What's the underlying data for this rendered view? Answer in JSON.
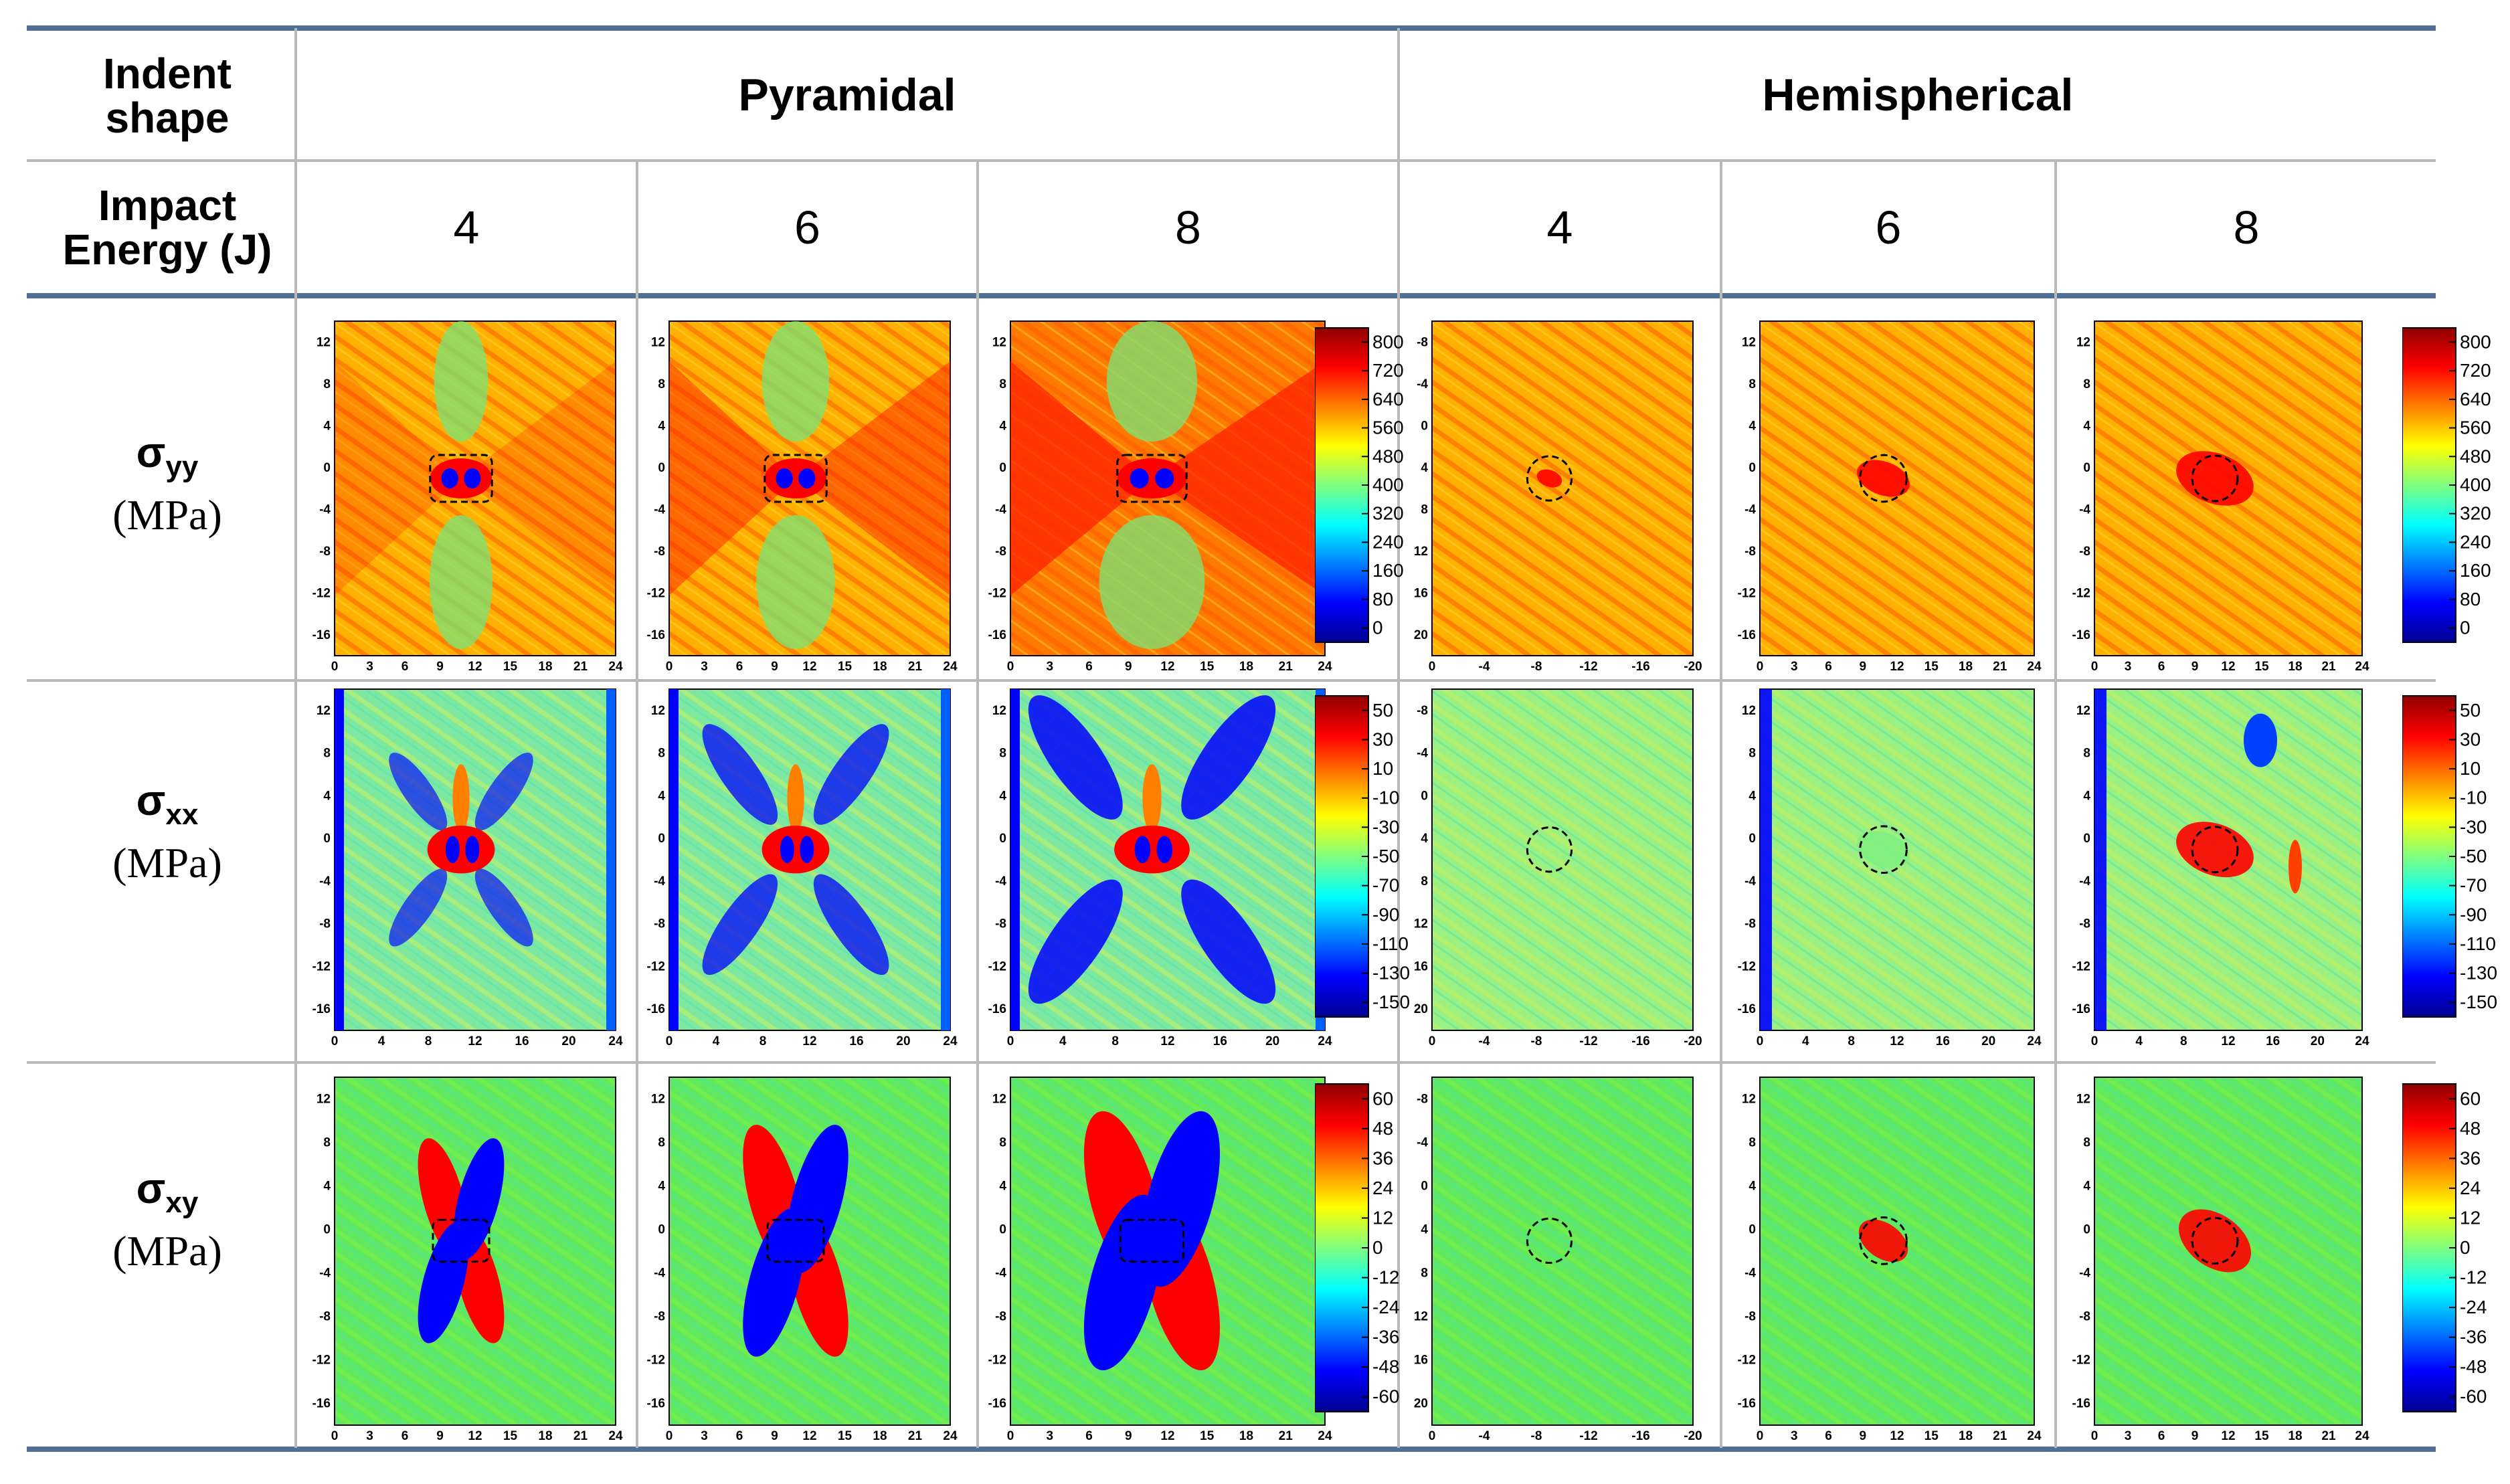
{
  "header": {
    "indent_shape_label": "Indent shape",
    "impact_energy_label": "Impact Energy (J)",
    "shapes": [
      "Pyramidal",
      "Hemispherical"
    ],
    "energies": [
      "4",
      "6",
      "8",
      "4",
      "6",
      "8"
    ]
  },
  "rows": [
    {
      "symbol": "σ",
      "subscript": "yy",
      "unit": "(MPa)",
      "colorbar_ticks": [
        "800",
        "720",
        "640",
        "560",
        "480",
        "400",
        "320",
        "240",
        "160",
        "80",
        "0"
      ]
    },
    {
      "symbol": "σ",
      "subscript": "xx",
      "unit": "(MPa)",
      "colorbar_ticks": [
        "50",
        "30",
        "10",
        "-10",
        "-30",
        "-50",
        "-70",
        "-90",
        "-110",
        "-130",
        "-150"
      ]
    },
    {
      "symbol": "σ",
      "subscript": "xy",
      "unit": "(MPa)",
      "colorbar_ticks": [
        "60",
        "48",
        "36",
        "24",
        "12",
        "0",
        "-12",
        "-24",
        "-36",
        "-48",
        "-60"
      ]
    }
  ],
  "axis_ticks": {
    "pyr_x": [
      "0",
      "3",
      "6",
      "9",
      "12",
      "15",
      "18",
      "21",
      "24"
    ],
    "pyr_x_xx": [
      "0",
      "4",
      "8",
      "12",
      "16",
      "20",
      "24"
    ],
    "pyr_y": [
      "12",
      "8",
      "4",
      "0",
      "-4",
      "-8",
      "-12",
      "-16"
    ],
    "hem_x": [
      "0",
      "-4",
      "-8",
      "-12",
      "-16",
      "-20"
    ],
    "hem_y": [
      "-8",
      "-4",
      "0",
      "4",
      "8",
      "12",
      "16",
      "20"
    ]
  },
  "colors": {
    "rule": "#4f6f97",
    "grid": "#b9b9b9",
    "jet": [
      "#00008f",
      "#0000ff",
      "#0080ff",
      "#00ffff",
      "#80ff80",
      "#ffff00",
      "#ff8000",
      "#ff0000",
      "#8f0000"
    ]
  }
}
